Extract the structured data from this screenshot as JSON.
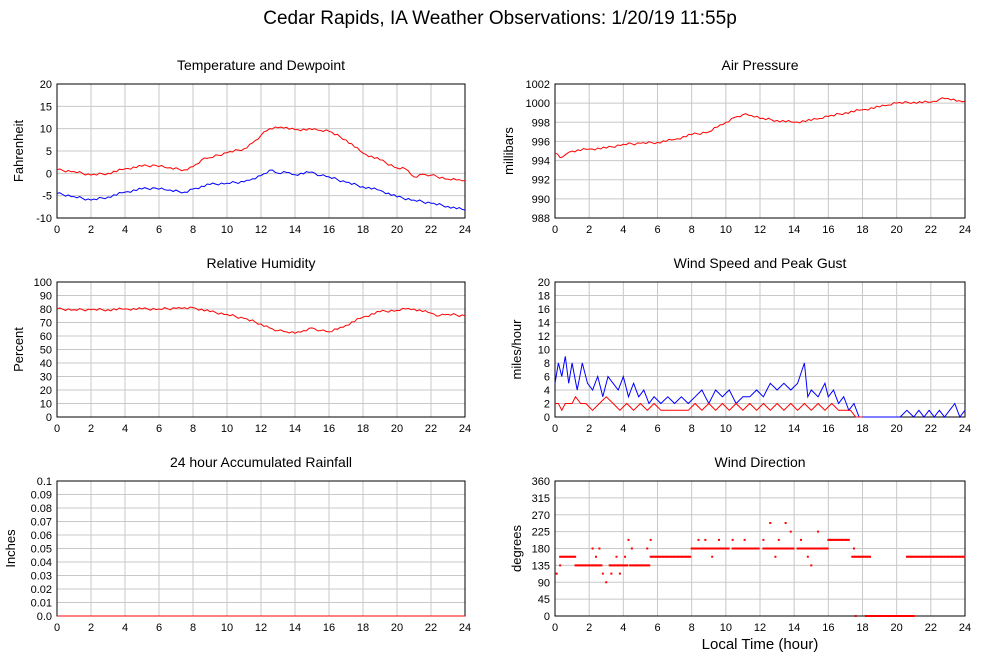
{
  "page_title": "Cedar Rapids, IA Weather Observations: 1/20/19 11:55p",
  "x_axis_label": "Local Time (hour)",
  "x_ticks": [
    "0",
    "2",
    "4",
    "6",
    "8",
    "10",
    "12",
    "14",
    "16",
    "18",
    "20",
    "22",
    "24"
  ],
  "colors": {
    "red": "#ff0000",
    "blue": "#0000ff",
    "grid": "#c8c8c8",
    "axis": "#000000"
  },
  "chart_data": [
    {
      "id": "temp",
      "type": "line",
      "title": "Temperature and Dewpoint",
      "ylabel": "Fahrenheit",
      "xlim": [
        0,
        24
      ],
      "ylim": [
        -10,
        20
      ],
      "yticks": [
        "-10",
        "-5",
        "0",
        "5",
        "10",
        "15",
        "20"
      ],
      "grid": true,
      "series": [
        {
          "color": "#ff0000",
          "x": [
            0,
            1,
            2,
            3,
            4,
            5,
            5.8,
            6.5,
            7.5,
            8,
            8.5,
            9,
            10,
            11,
            11.5,
            12,
            12.5,
            13,
            13.5,
            14,
            15,
            15.5,
            16,
            17,
            18,
            19,
            20,
            20.5,
            21,
            21.5,
            22,
            23,
            23.5,
            24
          ],
          "y": [
            0.8,
            0.4,
            -0.4,
            0,
            1,
            1.6,
            1.8,
            1.2,
            0.8,
            1.5,
            3,
            3.5,
            4.6,
            5.5,
            6.8,
            8.5,
            10,
            10.2,
            10.3,
            9.8,
            9.8,
            9.6,
            9.4,
            7.5,
            4.5,
            3,
            1.2,
            1,
            -0.8,
            -0.2,
            -0.4,
            -1.3,
            -1.5,
            -1.6
          ]
        },
        {
          "color": "#0000ff",
          "x": [
            0,
            1,
            2,
            3,
            4,
            5,
            5.8,
            6.5,
            7.5,
            8,
            9,
            10,
            11,
            11.5,
            12,
            12.5,
            13,
            13.5,
            14,
            15,
            15.5,
            16,
            17,
            18,
            19,
            20,
            21,
            22,
            23,
            24
          ],
          "y": [
            -4.5,
            -5.2,
            -6,
            -5.3,
            -4.2,
            -3.5,
            -3.3,
            -3.8,
            -4.2,
            -3.5,
            -2.5,
            -2.2,
            -1.9,
            -1.2,
            -0.5,
            0.7,
            0,
            0.2,
            -0.3,
            0.3,
            -0.5,
            -0.8,
            -2,
            -3,
            -3.8,
            -5.3,
            -6,
            -6.7,
            -7.4,
            -8.2
          ]
        }
      ]
    },
    {
      "id": "pressure",
      "type": "line",
      "title": "Air Pressure",
      "ylabel": "millibars",
      "xlim": [
        0,
        24
      ],
      "ylim": [
        988,
        1002
      ],
      "yticks": [
        "988",
        "990",
        "992",
        "994",
        "996",
        "998",
        "1000",
        "1002"
      ],
      "grid": true,
      "series": [
        {
          "color": "#ff0000",
          "x": [
            0,
            0.3,
            0.6,
            1,
            2,
            3,
            4,
            5,
            6,
            7,
            8,
            9,
            9.5,
            10,
            10.5,
            11,
            11.5,
            12,
            13,
            14,
            15,
            15.5,
            16,
            17,
            18,
            19,
            19.5,
            20,
            21,
            22,
            22.5,
            23,
            23.5,
            24
          ],
          "y": [
            994.8,
            994.3,
            994.6,
            995,
            995.2,
            995.3,
            995.7,
            995.8,
            995.9,
            996.2,
            996.7,
            997,
            997.5,
            998,
            998.5,
            998.8,
            998.7,
            998.4,
            998.2,
            998,
            998.2,
            998.4,
            998.6,
            999,
            999.3,
            999.6,
            999.8,
            1000,
            1000.1,
            1000.1,
            1000.4,
            1000.5,
            1000.2,
            1000.2
          ]
        }
      ]
    },
    {
      "id": "rh",
      "type": "line",
      "title": "Relative Humidity",
      "ylabel": "Percent",
      "xlim": [
        0,
        24
      ],
      "ylim": [
        0,
        100
      ],
      "yticks": [
        "0",
        "10",
        "20",
        "30",
        "40",
        "50",
        "60",
        "70",
        "80",
        "90",
        "100"
      ],
      "grid": true,
      "series": [
        {
          "color": "#ff0000",
          "x": [
            0,
            1,
            2,
            3,
            4,
            5,
            6,
            7,
            7.5,
            8,
            9,
            10,
            11,
            12,
            12.5,
            13,
            13.5,
            14,
            14.5,
            15,
            15.5,
            16,
            16.5,
            17,
            18,
            19,
            20,
            20.5,
            21,
            22,
            22.5,
            23,
            24
          ],
          "y": [
            80,
            79.5,
            79.5,
            79.5,
            80,
            80,
            80,
            80.5,
            81,
            81,
            78,
            76,
            73,
            69,
            66,
            64,
            63,
            62,
            64,
            66,
            64,
            63,
            65,
            68,
            74,
            78,
            79,
            80,
            80,
            77,
            75,
            76,
            75
          ]
        }
      ]
    },
    {
      "id": "wind",
      "type": "line",
      "title": "Wind Speed and Peak Gust",
      "ylabel": "miles/hour",
      "xlim": [
        0,
        24
      ],
      "ylim": [
        0,
        20
      ],
      "yticks": [
        "0",
        "2",
        "4",
        "6",
        "8",
        "10",
        "12",
        "14",
        "16",
        "18",
        "20"
      ],
      "grid": true,
      "series": [
        {
          "color": "#0000ff",
          "x": [
            0,
            0.2,
            0.4,
            0.6,
            0.8,
            1,
            1.3,
            1.6,
            1.9,
            2.2,
            2.5,
            2.8,
            3.1,
            3.4,
            3.7,
            4,
            4.3,
            4.6,
            4.9,
            5.2,
            5.5,
            5.8,
            6.2,
            6.6,
            7,
            7.4,
            7.8,
            8.2,
            8.6,
            9,
            9.4,
            9.8,
            10.2,
            10.6,
            11,
            11.4,
            11.8,
            12.2,
            12.6,
            13,
            13.4,
            13.8,
            14.2,
            14.6,
            14.8,
            15,
            15.4,
            15.8,
            16,
            16.3,
            16.6,
            16.9,
            17.2,
            17.5,
            17.8,
            18.2,
            18.6,
            19,
            19.4,
            19.8,
            20.2,
            20.6,
            21,
            21.3,
            21.6,
            21.9,
            22.2,
            22.5,
            22.8,
            23.1,
            23.4,
            23.7,
            24
          ],
          "y": [
            5,
            8,
            6,
            9,
            5,
            8,
            4,
            8,
            5,
            4,
            6,
            3,
            6,
            5,
            4,
            6,
            3,
            5,
            3,
            4,
            2,
            3,
            2,
            3,
            2,
            3,
            2,
            3,
            4,
            2,
            4,
            3,
            4,
            2,
            3,
            3,
            4,
            3,
            5,
            4,
            5,
            4,
            5,
            8,
            3,
            4,
            3,
            5,
            3,
            4,
            2,
            3,
            1,
            2,
            0,
            0,
            0,
            0,
            0,
            0,
            0,
            1,
            0,
            1,
            0,
            1,
            0,
            1,
            0,
            1,
            2,
            0,
            1
          ]
        },
        {
          "color": "#ff0000",
          "x": [
            0,
            0.2,
            0.4,
            0.6,
            0.8,
            1,
            1.2,
            1.5,
            1.8,
            2.2,
            2.6,
            3,
            3.4,
            3.8,
            4.2,
            4.6,
            5,
            5.4,
            5.8,
            6.2,
            6.6,
            7,
            7.4,
            7.8,
            8.2,
            8.6,
            9,
            9.4,
            9.8,
            10.2,
            10.6,
            11,
            11.4,
            11.8,
            12.2,
            12.6,
            13,
            13.4,
            13.8,
            14.2,
            14.6,
            15,
            15.4,
            15.8,
            16.2,
            16.6,
            17,
            17.3,
            17.6,
            18
          ],
          "y": [
            2,
            2,
            1,
            2,
            2,
            2,
            3,
            2,
            2,
            1,
            2,
            3,
            2,
            1,
            2,
            1,
            2,
            1,
            2,
            1,
            1,
            1,
            1,
            1,
            2,
            1,
            2,
            1,
            2,
            1,
            2,
            1,
            2,
            1,
            2,
            1,
            2,
            1,
            2,
            1,
            2,
            1,
            2,
            1,
            2,
            1,
            1,
            1,
            0,
            0
          ]
        }
      ]
    },
    {
      "id": "rain",
      "type": "line",
      "title": "24 hour Accumulated Rainfall",
      "ylabel": "Inches",
      "xlim": [
        0,
        24
      ],
      "ylim": [
        0,
        0.1
      ],
      "yticks": [
        "0.0",
        "0.01",
        "0.02",
        "0.03",
        "0.04",
        "0.05",
        "0.06",
        "0.07",
        "0.08",
        "0.09",
        "0.1"
      ],
      "grid": true,
      "series": [
        {
          "color": "#ff0000",
          "x": [
            0,
            24
          ],
          "y": [
            0,
            0
          ]
        }
      ]
    },
    {
      "id": "wdir",
      "type": "scatter",
      "title": "Wind Direction",
      "ylabel": "degrees",
      "xlim": [
        0,
        24
      ],
      "ylim": [
        0,
        360
      ],
      "yticks": [
        "0",
        "45",
        "90",
        "135",
        "180",
        "225",
        "270",
        "315",
        "360"
      ],
      "grid": true,
      "series": [
        {
          "color": "#ff0000",
          "segments": [
            [
              0.3,
              1.2,
              158
            ],
            [
              1.2,
              2.8,
              135
            ],
            [
              3.2,
              4.3,
              135
            ],
            [
              4.4,
              5.6,
              135
            ],
            [
              5.6,
              8,
              158
            ],
            [
              8,
              10.2,
              180
            ],
            [
              10.4,
              12,
              180
            ],
            [
              12.2,
              14,
              180
            ],
            [
              14.2,
              16,
              180
            ],
            [
              16,
              17.2,
              203
            ],
            [
              17.4,
              18.5,
              158
            ],
            [
              18.2,
              21,
              0
            ],
            [
              20.6,
              24,
              158
            ]
          ],
          "points": [
            [
              0.1,
              113
            ],
            [
              0.3,
              135
            ],
            [
              2.2,
              180
            ],
            [
              2.4,
              158
            ],
            [
              2.6,
              180
            ],
            [
              2.8,
              113
            ],
            [
              3,
              90
            ],
            [
              3.3,
              113
            ],
            [
              3.6,
              158
            ],
            [
              3.8,
              113
            ],
            [
              4.1,
              158
            ],
            [
              4.3,
              203
            ],
            [
              4.5,
              180
            ],
            [
              5.4,
              180
            ],
            [
              5.6,
              203
            ],
            [
              8.4,
              203
            ],
            [
              8.8,
              203
            ],
            [
              9.2,
              158
            ],
            [
              9.6,
              203
            ],
            [
              10.4,
              203
            ],
            [
              10.8,
              180
            ],
            [
              11.1,
              203
            ],
            [
              12.2,
              203
            ],
            [
              12.6,
              248
            ],
            [
              12.9,
              158
            ],
            [
              13.1,
              203
            ],
            [
              13.5,
              248
            ],
            [
              13.8,
              225
            ],
            [
              14.4,
              203
            ],
            [
              14.8,
              158
            ],
            [
              15,
              135
            ],
            [
              15.4,
              225
            ],
            [
              16.1,
              203
            ],
            [
              17.5,
              180
            ],
            [
              17.6,
              0
            ]
          ]
        }
      ]
    }
  ]
}
